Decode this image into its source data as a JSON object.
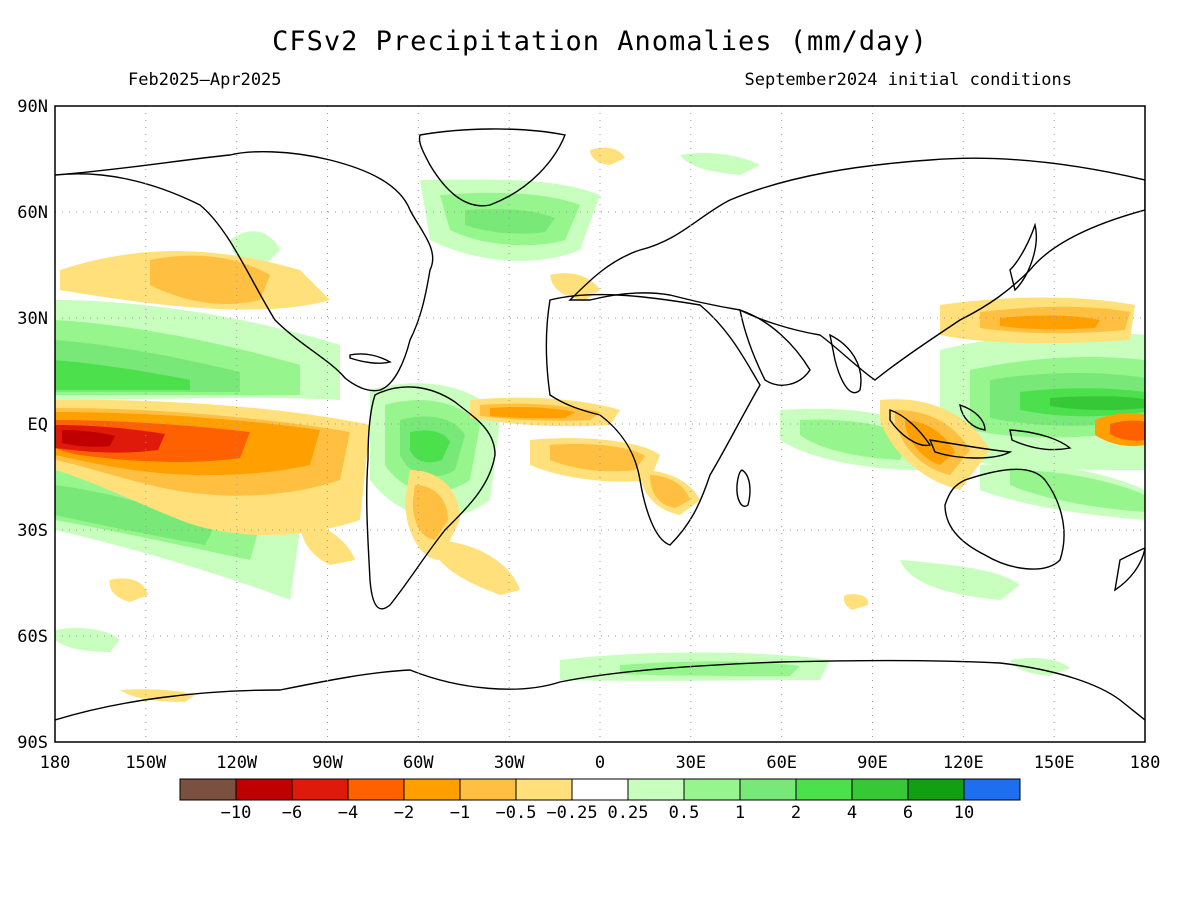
{
  "title": "CFSv2 Precipitation Anomalies (mm/day)",
  "period": "Feb2025–Apr2025",
  "initial_conditions": "September2024 initial conditions",
  "lat_labels": [
    "90N",
    "60N",
    "30N",
    "EQ",
    "30S",
    "60S",
    "90S"
  ],
  "lon_labels": [
    "180",
    "150W",
    "120W",
    "90W",
    "60W",
    "30W",
    "0",
    "30E",
    "60E",
    "90E",
    "120E",
    "150E",
    "180"
  ],
  "legend": {
    "colors": [
      "#7a5040",
      "#c00000",
      "#e01a0a",
      "#ff6000",
      "#ffa000",
      "#ffbf40",
      "#ffe07a",
      "#ffffff",
      "#c8ffbe",
      "#96f58c",
      "#78e878",
      "#4ce04c",
      "#36c836",
      "#12a012",
      "#1e6ef0"
    ],
    "labels": [
      "−10",
      "−6",
      "−4",
      "−2",
      "−1",
      "−0.5",
      "−0.25",
      "0.25",
      "0.5",
      "1",
      "2",
      "4",
      "6",
      "10"
    ]
  }
}
